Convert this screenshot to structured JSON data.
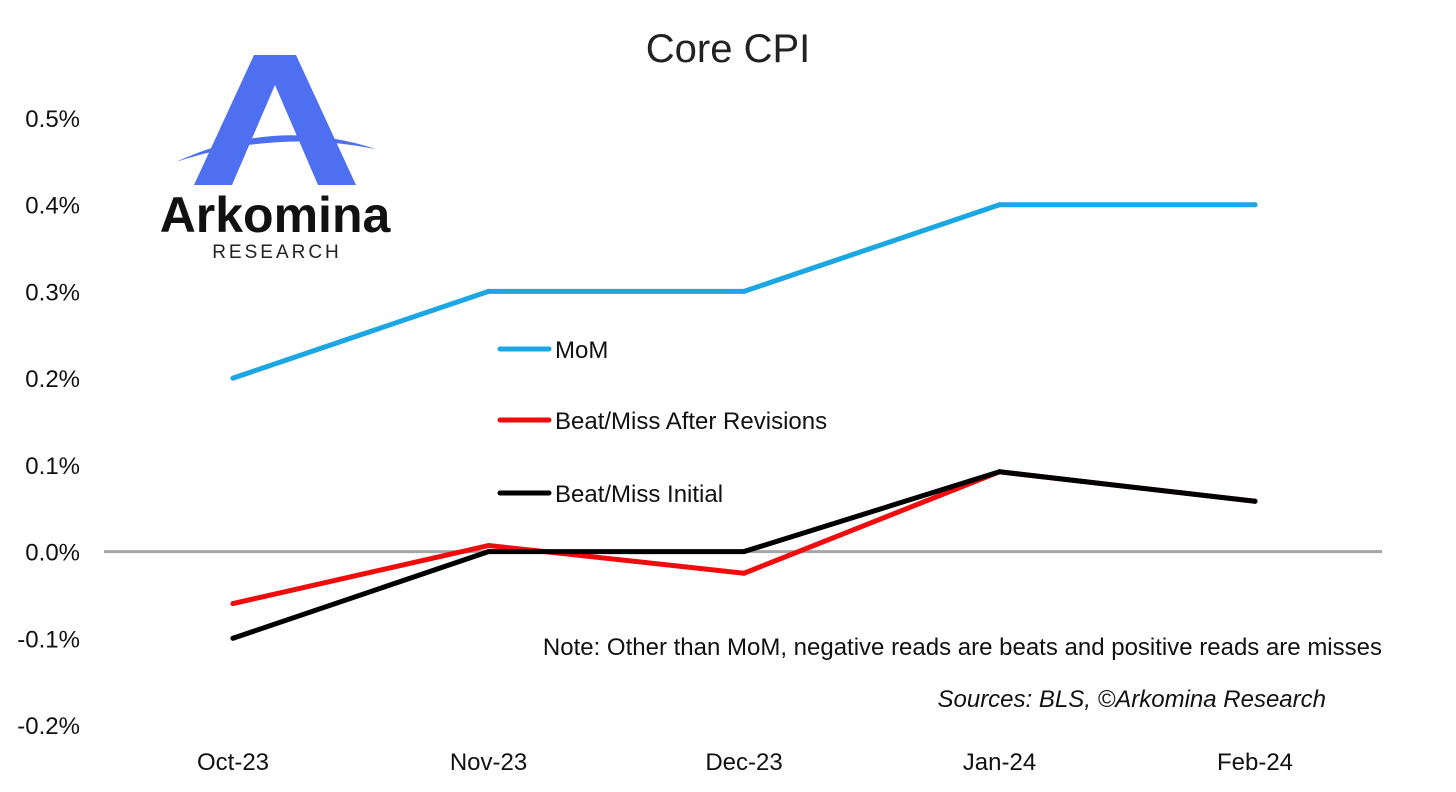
{
  "chart_data": {
    "type": "line",
    "title": "Core CPI",
    "categories": [
      "Oct-23",
      "Nov-23",
      "Dec-23",
      "Jan-24",
      "Feb-24"
    ],
    "y_tick_labels": [
      "0.5%",
      "0.4%",
      "0.3%",
      "0.2%",
      "0.1%",
      "0.0%",
      "-0.1%",
      "-0.2%"
    ],
    "ylim": [
      -0.2,
      0.5
    ],
    "unit": "%",
    "grid": false,
    "legend_position": "center-left",
    "series": [
      {
        "name": "MoM",
        "color": "#1aa7e4",
        "values": [
          0.2,
          0.3,
          0.3,
          0.4,
          0.4
        ]
      },
      {
        "name": "Beat/Miss After Revisions",
        "color": "#f00c0c",
        "values": [
          -0.06,
          0.007,
          -0.025,
          0.092,
          0.058
        ]
      },
      {
        "name": "Beat/Miss Initial",
        "color": "#000000",
        "values": [
          -0.1,
          0.0,
          0.0,
          0.092,
          0.058
        ]
      }
    ],
    "annotations": [
      "Note: Other than MoM, negative reads are beats and positive reads are misses",
      "Sources: BLS, ©Arkomina Research"
    ]
  },
  "logo": {
    "name": "Arkomina",
    "subtitle": "RESEARCH",
    "color": "#4d6ff0"
  },
  "colors": {
    "zero_line": "#a6a6a6"
  }
}
